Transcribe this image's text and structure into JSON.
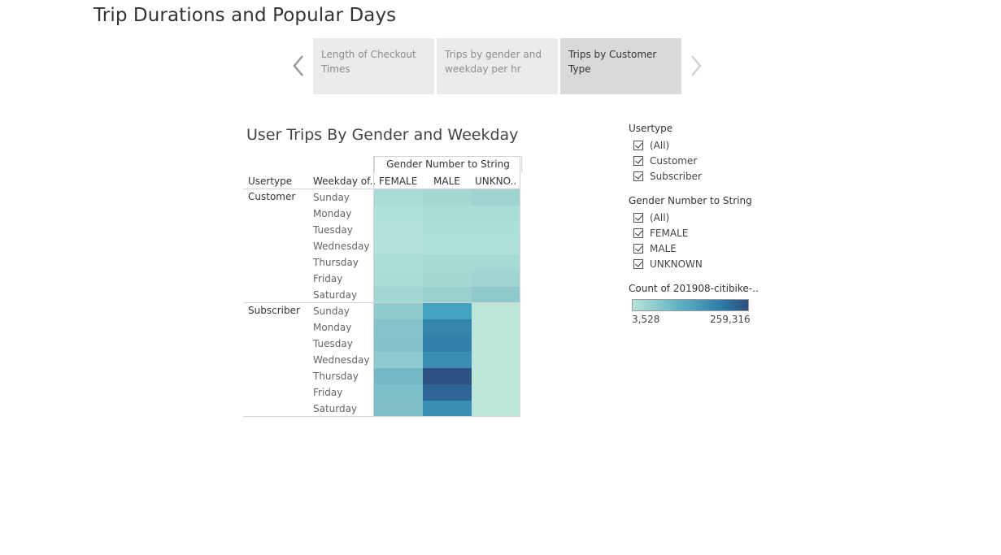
{
  "story": {
    "title": "Trip Durations and Popular Days",
    "points": [
      {
        "label": "Length of Checkout Times"
      },
      {
        "label": "Trips by gender and weekday per hr"
      },
      {
        "label": "Trips by Customer Type"
      }
    ],
    "active_point": 2
  },
  "sheet": {
    "title": "User Trips By Gender and Weekday",
    "row_headers": {
      "usertype": "Usertype",
      "weekday": "Weekday of.."
    },
    "column_field": "Gender Number to String",
    "columns": [
      "FEMALE",
      "MALE",
      "UNKNO.."
    ],
    "groups": [
      {
        "label": "Customer",
        "days": [
          "Sunday",
          "Monday",
          "Tuesday",
          "Wednesday",
          "Thursday",
          "Friday",
          "Saturday"
        ]
      },
      {
        "label": "Subscriber",
        "days": [
          "Sunday",
          "Monday",
          "Tuesday",
          "Wednesday",
          "Thursday",
          "Friday",
          "Saturday"
        ]
      }
    ],
    "colors": {
      "customer": [
        [
          "#a9dcd6",
          "#a4d8d3",
          "#9fd3d0"
        ],
        [
          "#b0e0da",
          "#abddd7",
          "#abddd7"
        ],
        [
          "#b2e1db",
          "#addfd9",
          "#addfd9"
        ],
        [
          "#b4e2db",
          "#b0e0da",
          "#b0e0da"
        ],
        [
          "#abded7",
          "#a6dad5",
          "#a6dad5"
        ],
        [
          "#a9dcd6",
          "#a3d8d3",
          "#a0d5d1"
        ],
        [
          "#a2d6d2",
          "#9ad1cf",
          "#90c9cb"
        ]
      ],
      "subscriber": [
        [
          "#90cacd",
          "#45a2bf",
          "#bde6db"
        ],
        [
          "#84c3ca",
          "#3585ad",
          "#bde6db"
        ],
        [
          "#83c2c9",
          "#3381ab",
          "#bde6db"
        ],
        [
          "#8ecacd",
          "#3b8db4",
          "#bde6db"
        ],
        [
          "#72b8c5",
          "#2b5283",
          "#bde6db"
        ],
        [
          "#7cbfc8",
          "#2f6596",
          "#bde6db"
        ],
        [
          "#80c1c9",
          "#3a8db3",
          "#bde6db"
        ]
      ]
    }
  },
  "filters": {
    "usertype": {
      "title": "Usertype",
      "items": [
        "(All)",
        "Customer",
        "Subscriber"
      ]
    },
    "gender": {
      "title": "Gender Number to String",
      "items": [
        "(All)",
        "FEMALE",
        "MALE",
        "UNKNOWN"
      ]
    }
  },
  "color_legend": {
    "title": "Count of 201908-citibike-..",
    "min": "3,528",
    "max": "259,316"
  }
}
